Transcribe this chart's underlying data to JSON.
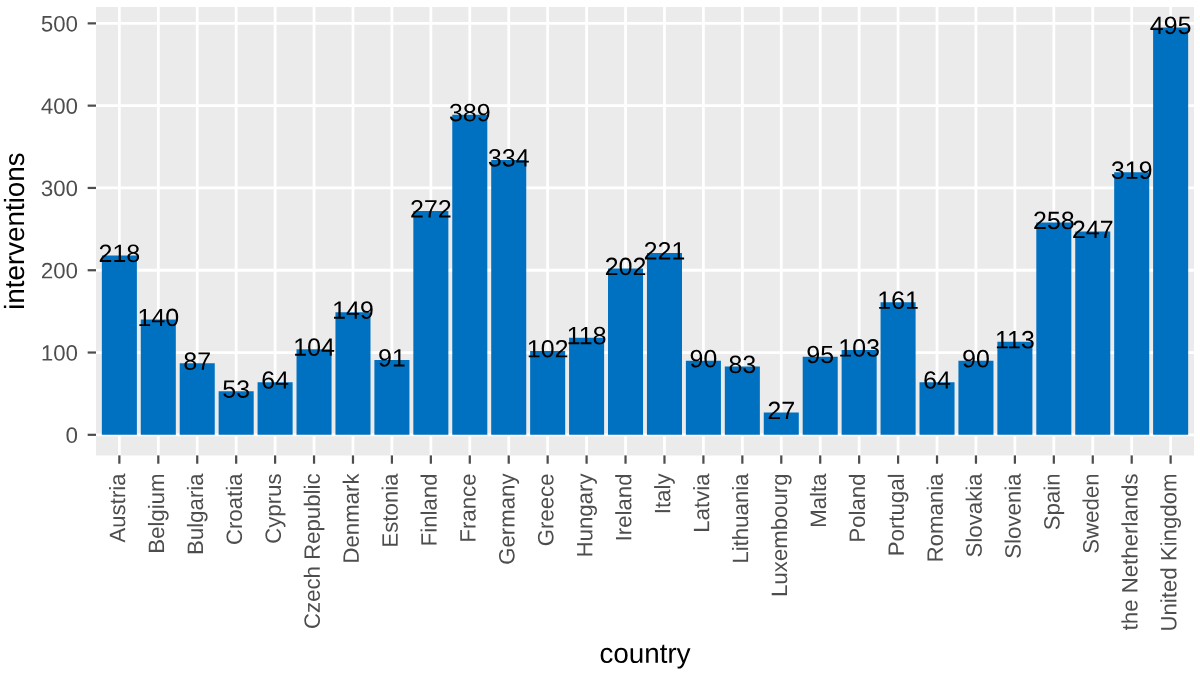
{
  "chart_data": {
    "type": "bar",
    "xlabel": "country",
    "ylabel": "interventions",
    "categories": [
      "Austria",
      "Belgium",
      "Bulgaria",
      "Croatia",
      "Cyprus",
      "Czech Republic",
      "Denmark",
      "Estonia",
      "Finland",
      "France",
      "Germany",
      "Greece",
      "Hungary",
      "Ireland",
      "Italy",
      "Latvia",
      "Lithuania",
      "Luxembourg",
      "Malta",
      "Poland",
      "Portugal",
      "Romania",
      "Slovakia",
      "Slovenia",
      "Spain",
      "Sweden",
      "the Netherlands",
      "United Kingdom"
    ],
    "values": [
      218,
      140,
      87,
      53,
      64,
      104,
      149,
      91,
      272,
      389,
      334,
      102,
      118,
      202,
      221,
      90,
      83,
      27,
      95,
      103,
      161,
      64,
      90,
      113,
      258,
      247,
      319,
      495
    ],
    "color": "#0070c0",
    "data_labels": true,
    "grid": true,
    "ylim": [
      -25,
      520
    ],
    "yticks": [
      0,
      100,
      200,
      300,
      400,
      500
    ]
  }
}
